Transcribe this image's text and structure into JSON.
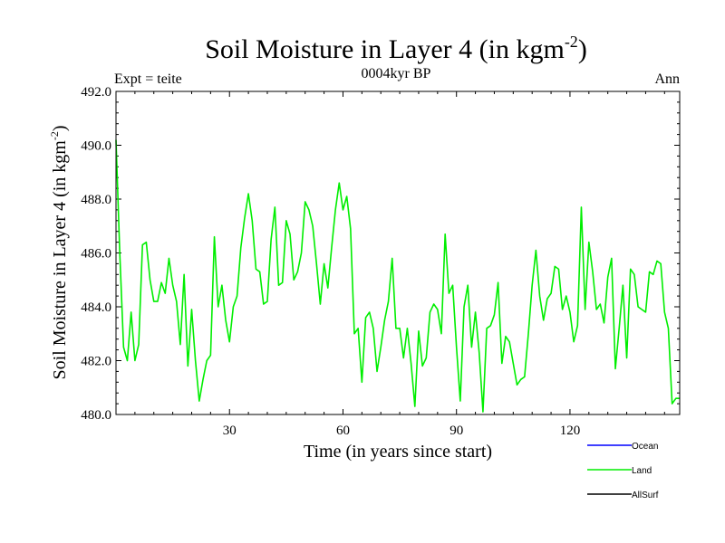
{
  "chart_data": {
    "type": "line",
    "title": "Soil Moisture in Layer 4 (in kgm",
    "title_sup": "-2",
    "title_end": ")",
    "left_label": "Expt = teite",
    "center_label": "0004kyr BP",
    "right_label": "Ann",
    "xlabel": "Time (in years since start)",
    "ylabel": "Soil Moisture in Layer 4 (in kgm",
    "ylabel_sup": "-2",
    "ylabel_end": ")",
    "xlim": [
      0,
      149
    ],
    "ylim": [
      480,
      492
    ],
    "xticks": [
      30,
      60,
      90,
      120
    ],
    "yticks": [
      480,
      482,
      484,
      486,
      488,
      490,
      492
    ],
    "ytick_labels": [
      "480.0",
      "482.0",
      "484.0",
      "486.0",
      "488.0",
      "490.0",
      "492.0"
    ],
    "legend_position": "bottom-right",
    "legend": [
      {
        "name": "Ocean",
        "color": "#0000ff"
      },
      {
        "name": "Land",
        "color": "#00ee00"
      },
      {
        "name": "AllSurf",
        "color": "#000000"
      }
    ],
    "series": [
      {
        "name": "Land",
        "color": "#00ee00",
        "x": [
          0,
          1,
          2,
          3,
          4,
          5,
          6,
          7,
          8,
          9,
          10,
          11,
          12,
          13,
          14,
          15,
          16,
          17,
          18,
          19,
          20,
          21,
          22,
          23,
          24,
          25,
          26,
          27,
          28,
          29,
          30,
          31,
          32,
          33,
          34,
          35,
          36,
          37,
          38,
          39,
          40,
          41,
          42,
          43,
          44,
          45,
          46,
          47,
          48,
          49,
          50,
          51,
          52,
          53,
          54,
          55,
          56,
          57,
          58,
          59,
          60,
          61,
          62,
          63,
          64,
          65,
          66,
          67,
          68,
          69,
          70,
          71,
          72,
          73,
          74,
          75,
          76,
          77,
          78,
          79,
          80,
          81,
          82,
          83,
          84,
          85,
          86,
          87,
          88,
          89,
          90,
          91,
          92,
          93,
          94,
          95,
          96,
          97,
          98,
          99,
          100,
          101,
          102,
          103,
          104,
          105,
          106,
          107,
          108,
          109,
          110,
          111,
          112,
          113,
          114,
          115,
          116,
          117,
          118,
          119,
          120,
          121,
          122,
          123,
          124,
          125,
          126,
          127,
          128,
          129,
          130,
          131,
          132,
          133,
          134,
          135,
          136,
          137,
          138,
          139,
          140,
          141,
          142,
          143,
          144,
          145,
          146,
          147,
          148,
          149
        ],
        "values": [
          490.2,
          486.0,
          482.5,
          482.0,
          483.8,
          482.0,
          482.6,
          486.3,
          486.4,
          485.0,
          484.2,
          484.2,
          484.9,
          484.5,
          485.8,
          484.8,
          484.2,
          482.6,
          485.2,
          481.8,
          483.9,
          482.0,
          480.5,
          481.3,
          482.0,
          482.2,
          486.6,
          484.0,
          484.8,
          483.5,
          482.7,
          484.0,
          484.4,
          486.2,
          487.3,
          488.2,
          487.2,
          485.4,
          485.3,
          484.1,
          484.2,
          486.5,
          487.7,
          484.8,
          484.9,
          487.2,
          486.7,
          485.0,
          485.3,
          486.0,
          487.9,
          487.6,
          487.0,
          485.6,
          484.1,
          485.6,
          484.7,
          486.2,
          487.6,
          488.6,
          487.6,
          488.1,
          486.9,
          483.0,
          483.2,
          481.2,
          483.6,
          483.8,
          483.2,
          481.6,
          482.5,
          483.5,
          484.2,
          485.8,
          483.2,
          483.2,
          482.1,
          483.2,
          481.9,
          480.3,
          483.1,
          481.8,
          482.1,
          483.8,
          484.1,
          483.9,
          483.0,
          486.7,
          484.5,
          484.8,
          482.5,
          480.5,
          484.0,
          484.8,
          482.5,
          483.8,
          482.3,
          480.1,
          483.2,
          483.3,
          483.7,
          484.9,
          481.9,
          482.9,
          482.7,
          481.9,
          481.1,
          481.3,
          481.4,
          483.0,
          484.8,
          486.1,
          484.4,
          483.5,
          484.3,
          484.5,
          485.5,
          485.4,
          483.9,
          484.4,
          483.8,
          482.7,
          483.3,
          487.7,
          483.9,
          486.4,
          485.3,
          483.9,
          484.1,
          483.4,
          485.1,
          485.8,
          481.7,
          483.2,
          484.8,
          482.1,
          485.4,
          485.2,
          484.0,
          483.9,
          483.8,
          485.3,
          485.2,
          485.7,
          485.6,
          483.8,
          483.2,
          480.4,
          480.6,
          480.6
        ]
      }
    ]
  }
}
